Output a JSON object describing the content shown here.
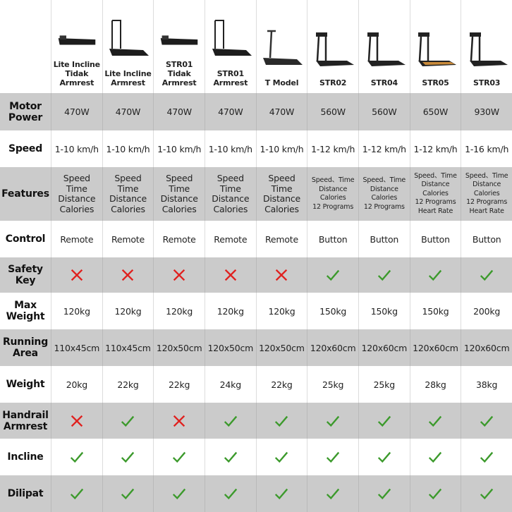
{
  "colors": {
    "row_gray": "#cbcbcb",
    "check": "#3c9a2c",
    "cross": "#e0211f"
  },
  "products": [
    {
      "name": "Lite Incline Tidak Armrest",
      "image": "treadmill-flat",
      "lines": [
        "Lite Incline",
        "Tidak",
        "Armrest"
      ]
    },
    {
      "name": "Lite Incline Armrest",
      "image": "treadmill-handle",
      "lines": [
        "Lite Incline",
        "Armrest"
      ]
    },
    {
      "name": "STR01 Tidak Armrest",
      "image": "treadmill-flat",
      "lines": [
        "STR01 Tidak",
        "Armrest"
      ]
    },
    {
      "name": "STR01 Armrest",
      "image": "treadmill-handle",
      "lines": [
        "STR01",
        "Armrest"
      ]
    },
    {
      "name": "T Model",
      "image": "treadmill-tpole",
      "lines": [
        "T Model"
      ]
    },
    {
      "name": "STR02",
      "image": "treadmill-console",
      "lines": [
        "STR02"
      ]
    },
    {
      "name": "STR04",
      "image": "treadmill-console",
      "lines": [
        "STR04"
      ]
    },
    {
      "name": "STR05",
      "image": "treadmill-console-orange",
      "lines": [
        "STR05"
      ]
    },
    {
      "name": "STR03",
      "image": "treadmill-console",
      "lines": [
        "STR03"
      ]
    }
  ],
  "rows": [
    {
      "label": "Motor Power",
      "gray": true,
      "type": "text",
      "values": [
        "470W",
        "470W",
        "470W",
        "470W",
        "470W",
        "560W",
        "560W",
        "650W",
        "930W"
      ]
    },
    {
      "label": "Speed",
      "gray": false,
      "type": "text",
      "values": [
        "1-10 km/h",
        "1-10 km/h",
        "1-10 km/h",
        "1-10 km/h",
        "1-10 km/h",
        "1-12 km/h",
        "1-12 km/h",
        "1-12 km/h",
        "1-16 km/h"
      ]
    },
    {
      "label": "Features",
      "gray": true,
      "type": "list",
      "values": [
        [
          "Speed",
          "Time",
          "Distance",
          "Calories"
        ],
        [
          "Speed",
          "Time",
          "Distance",
          "Calories"
        ],
        [
          "Speed",
          "Time",
          "Distance",
          "Calories"
        ],
        [
          "Speed",
          "Time",
          "Distance",
          "Calories"
        ],
        [
          "Speed",
          "Time",
          "Distance",
          "Calories"
        ],
        [
          "Speed、Time",
          "Distance",
          "Calories",
          "12 Programs"
        ],
        [
          "Speed、Time",
          "Distance",
          "Calories",
          "12 Programs"
        ],
        [
          "Speed、Time",
          "Distance",
          "Calories",
          "12 Programs",
          "Heart Rate"
        ],
        [
          "Speed、Time",
          "Distance",
          "Calories",
          "12 Programs",
          "Heart Rate"
        ]
      ]
    },
    {
      "label": "Control",
      "gray": false,
      "type": "text",
      "values": [
        "Remote",
        "Remote",
        "Remote",
        "Remote",
        "Remote",
        "Button",
        "Button",
        "Button",
        "Button"
      ]
    },
    {
      "label": "Safety Key",
      "gray": true,
      "type": "mark",
      "values": [
        false,
        false,
        false,
        false,
        false,
        true,
        true,
        true,
        true
      ]
    },
    {
      "label": "Max Weight",
      "gray": false,
      "type": "text",
      "values": [
        "120kg",
        "120kg",
        "120kg",
        "120kg",
        "120kg",
        "150kg",
        "150kg",
        "150kg",
        "200kg"
      ]
    },
    {
      "label": "Running Area",
      "gray": true,
      "type": "text",
      "values": [
        "110x45cm",
        "110x45cm",
        "120x50cm",
        "120x50cm",
        "120x50cm",
        "120x60cm",
        "120x60cm",
        "120x60cm",
        "120x60cm"
      ]
    },
    {
      "label": "Weight",
      "gray": false,
      "type": "text",
      "values": [
        "20kg",
        "22kg",
        "22kg",
        "24kg",
        "22kg",
        "25kg",
        "25kg",
        "28kg",
        "38kg"
      ]
    },
    {
      "label": "Handrail Armrest",
      "gray": true,
      "type": "mark",
      "values": [
        false,
        true,
        false,
        true,
        true,
        true,
        true,
        true,
        true
      ]
    },
    {
      "label": "Incline",
      "gray": false,
      "type": "mark",
      "values": [
        true,
        true,
        true,
        true,
        true,
        true,
        true,
        true,
        true
      ]
    },
    {
      "label": "Dilipat",
      "gray": true,
      "type": "mark",
      "values": [
        true,
        true,
        true,
        true,
        true,
        true,
        true,
        true,
        true
      ]
    }
  ]
}
